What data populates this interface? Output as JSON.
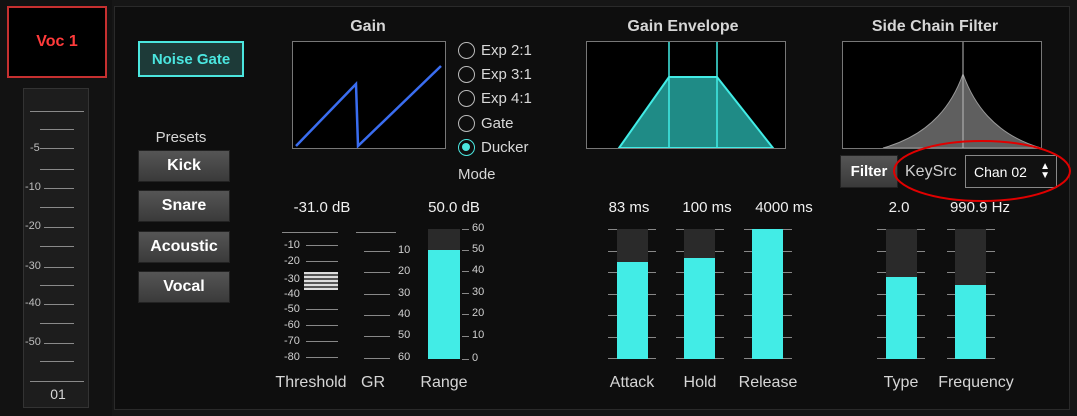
{
  "channel": {
    "name": "Voc 1",
    "number": "01"
  },
  "fader_scale": [
    "-5",
    "-10",
    "-20",
    "-30",
    "-40",
    "-50"
  ],
  "noise_gate_label": "Noise Gate",
  "presets": {
    "title": "Presets",
    "items": [
      "Kick",
      "Snare",
      "Acoustic",
      "Vocal"
    ]
  },
  "gain": {
    "title": "Gain",
    "modes": [
      "Exp 2:1",
      "Exp 3:1",
      "Exp 4:1",
      "Gate",
      "Ducker"
    ],
    "selected_mode": "Ducker",
    "mode_label": "Mode"
  },
  "threshold": {
    "value": "-31.0 dB",
    "label": "Threshold",
    "scale": [
      "-10",
      "-20",
      "-30",
      "-40",
      "-50",
      "-60",
      "-70",
      "-80"
    ]
  },
  "gr": {
    "label": "GR",
    "scale": [
      "10",
      "20",
      "30",
      "40",
      "50",
      "60"
    ]
  },
  "range": {
    "value": "50.0 dB",
    "label": "Range",
    "scale": [
      "60",
      "50",
      "40",
      "30",
      "20",
      "10",
      "0"
    ],
    "level": 0.84
  },
  "envelope": {
    "title": "Gain Envelope",
    "attack": {
      "value": "83 ms",
      "label": "Attack",
      "level": 0.75
    },
    "hold": {
      "value": "100 ms",
      "label": "Hold",
      "level": 0.78
    },
    "release": {
      "value": "4000 ms",
      "label": "Release",
      "level": 1.0
    }
  },
  "side_chain": {
    "title": "Side Chain Filter",
    "filter_button": "Filter",
    "keysrc_label": "KeySrc",
    "keysrc_value": "Chan 02",
    "type": {
      "value": "2.0",
      "label": "Type",
      "level": 0.63
    },
    "frequency": {
      "value": "990.9 Hz",
      "label": "Frequency",
      "level": 0.57
    }
  },
  "colors": {
    "accent": "#42ece6",
    "channel_name": "#ff3b3b",
    "annotation": "#e00000"
  }
}
